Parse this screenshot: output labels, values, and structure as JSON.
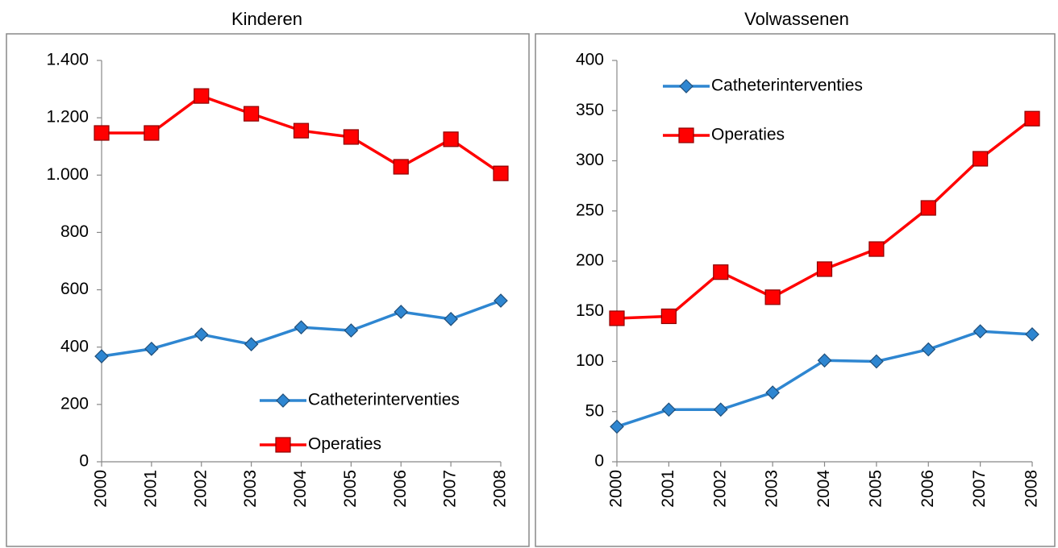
{
  "chart_data": [
    {
      "type": "line",
      "title": "Kinderen",
      "categories": [
        "2000",
        "2001",
        "2002",
        "2003",
        "2004",
        "2005",
        "2006",
        "2007",
        "2008"
      ],
      "series": [
        {
          "name": "Catheterinterventies",
          "color": "#2e86d1",
          "marker": "diamond",
          "values": [
            368,
            394,
            444,
            410,
            469,
            458,
            523,
            498,
            562
          ]
        },
        {
          "name": "Operaties",
          "color": "#ff0000",
          "marker": "square",
          "values": [
            1147,
            1147,
            1276,
            1214,
            1155,
            1133,
            1029,
            1125,
            1006
          ]
        }
      ],
      "ylim": [
        0,
        1400
      ],
      "yticks": [
        0,
        200,
        400,
        600,
        800,
        {
          "value": 1000,
          "label": "1.000"
        },
        {
          "value": 1200,
          "label": "1.200"
        },
        {
          "value": 1400,
          "label": "1.400"
        }
      ],
      "grid": false,
      "legend": "lower right"
    },
    {
      "type": "line",
      "title": "Volwassenen",
      "categories": [
        "2000",
        "2001",
        "2002",
        "2003",
        "2004",
        "2005",
        "2006",
        "2007",
        "2008"
      ],
      "series": [
        {
          "name": "Catheterinterventies",
          "color": "#2e86d1",
          "marker": "diamond",
          "values": [
            35,
            52,
            52,
            69,
            101,
            100,
            112,
            130,
            127
          ]
        },
        {
          "name": "Operaties",
          "color": "#ff0000",
          "marker": "square",
          "values": [
            143,
            145,
            189,
            164,
            192,
            212,
            253,
            302,
            342
          ]
        }
      ],
      "ylim": [
        0,
        400
      ],
      "yticks": [
        0,
        50,
        100,
        150,
        200,
        250,
        300,
        350,
        400
      ],
      "grid": false,
      "legend": "upper left"
    }
  ]
}
